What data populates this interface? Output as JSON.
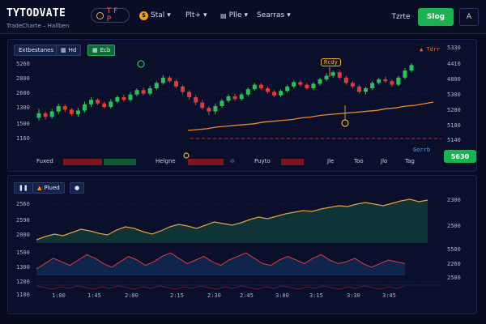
{
  "app": {
    "name": "TYTODVATE",
    "subtitle": "TradeCharte – Hallben"
  },
  "header": {
    "live_badge": "T F P",
    "nav": [
      {
        "label": "Stal"
      },
      {
        "label": "Plt+"
      },
      {
        "label": "Plle"
      },
      {
        "label": "Searras"
      }
    ],
    "text_link": "Tzrte",
    "primary_button": "Slog",
    "avatar": "A"
  },
  "main_chart": {
    "toolbar": [
      "Extbestanes",
      "Hd",
      "Ecb"
    ],
    "price_flag": "Tdrr",
    "y_labels": [
      "5260",
      "2800",
      "2600",
      "1300",
      "1500",
      "1160"
    ],
    "y_labels_right": [
      "5330",
      "5300",
      "4410",
      "4800",
      "5300",
      "5280",
      "5180",
      "5140"
    ],
    "right_badge": "Gorrb",
    "price_button": "5630",
    "callout": "Rcdy",
    "bottom_labels": [
      "Fuxed",
      "Helgne",
      "Puyto",
      "Jle",
      "Too",
      "Jlo",
      "Tag"
    ],
    "candle_data": [
      [
        37,
        42,
        34,
        47
      ],
      [
        42,
        38,
        35,
        44
      ],
      [
        38,
        44,
        36,
        47
      ],
      [
        44,
        50,
        41,
        53
      ],
      [
        50,
        46,
        43,
        52
      ],
      [
        46,
        41,
        39,
        48
      ],
      [
        41,
        45,
        38,
        48
      ],
      [
        45,
        52,
        43,
        55
      ],
      [
        52,
        57,
        49,
        60
      ],
      [
        57,
        53,
        51,
        59
      ],
      [
        53,
        49,
        47,
        55
      ],
      [
        49,
        55,
        47,
        58
      ],
      [
        55,
        60,
        53,
        62
      ],
      [
        60,
        57,
        55,
        63
      ],
      [
        57,
        63,
        55,
        66
      ],
      [
        63,
        68,
        61,
        70
      ],
      [
        68,
        64,
        62,
        71
      ],
      [
        64,
        70,
        62,
        73
      ],
      [
        70,
        76,
        68,
        78
      ],
      [
        76,
        82,
        74,
        85
      ],
      [
        82,
        78,
        76,
        84
      ],
      [
        78,
        72,
        70,
        80
      ],
      [
        72,
        66,
        63,
        74
      ],
      [
        66,
        60,
        57,
        68
      ],
      [
        60,
        54,
        51,
        62
      ],
      [
        54,
        48,
        46,
        57
      ],
      [
        48,
        44,
        40,
        50
      ],
      [
        44,
        50,
        41,
        53
      ],
      [
        50,
        56,
        48,
        58
      ],
      [
        56,
        61,
        54,
        63
      ],
      [
        61,
        58,
        56,
        64
      ],
      [
        58,
        63,
        56,
        65
      ],
      [
        63,
        69,
        61,
        71
      ],
      [
        69,
        74,
        67,
        76
      ],
      [
        74,
        70,
        68,
        76
      ],
      [
        70,
        66,
        64,
        72
      ],
      [
        66,
        62,
        60,
        68
      ],
      [
        62,
        67,
        60,
        69
      ],
      [
        67,
        72,
        65,
        74
      ],
      [
        72,
        77,
        70,
        79
      ],
      [
        77,
        74,
        72,
        79
      ],
      [
        74,
        70,
        68,
        76
      ],
      [
        70,
        75,
        68,
        77
      ],
      [
        75,
        80,
        73,
        82
      ],
      [
        80,
        84,
        78,
        87
      ],
      [
        84,
        88,
        82,
        90
      ],
      [
        88,
        82,
        80,
        90
      ],
      [
        82,
        76,
        74,
        84
      ],
      [
        76,
        72,
        70,
        78
      ],
      [
        72,
        66,
        64,
        74
      ],
      [
        66,
        70,
        63,
        72
      ],
      [
        70,
        76,
        68,
        78
      ],
      [
        76,
        80,
        74,
        82
      ],
      [
        80,
        78,
        76,
        83
      ],
      [
        78,
        74,
        72,
        80
      ],
      [
        74,
        82,
        72,
        84
      ],
      [
        82,
        90,
        80,
        93
      ],
      [
        90,
        96,
        88,
        98
      ]
    ],
    "ma_data": [
      40,
      41,
      42,
      44,
      45,
      46,
      47,
      48,
      50,
      51,
      52,
      53,
      55,
      56,
      58,
      59,
      60,
      61,
      62,
      63,
      64,
      66,
      67,
      69,
      70,
      72,
      74
    ]
  },
  "sub_chart": {
    "toolbar": [
      "Plued"
    ],
    "y_labels": [
      "2560",
      "2590",
      "2000",
      "1500",
      "1300",
      "1200",
      "1100"
    ],
    "y_labels_right": [
      "2300",
      "2500",
      "5500",
      "2260",
      "2580",
      "2300"
    ],
    "x_labels": [
      "1:00",
      "1:45",
      "2:00",
      "2:15",
      "2:30",
      "2:45",
      "3:00",
      "3:15",
      "3:30",
      "3:45"
    ],
    "area_data": [
      44,
      48,
      51,
      49,
      53,
      57,
      55,
      52,
      50,
      56,
      60,
      58,
      54,
      51,
      55,
      60,
      63,
      61,
      58,
      62,
      66,
      64,
      62,
      65,
      69,
      72,
      70,
      73,
      76,
      78,
      80,
      79,
      82,
      84,
      86,
      85,
      88,
      90,
      88,
      86,
      89,
      92,
      94,
      91,
      93
    ],
    "osc_data": [
      0,
      3,
      6,
      4,
      2,
      5,
      8,
      6,
      3,
      1,
      4,
      7,
      5,
      2,
      4,
      7,
      9,
      6,
      3,
      5,
      7,
      4,
      2,
      5,
      7,
      9,
      6,
      3,
      2,
      5,
      7,
      5,
      3,
      6,
      8,
      5,
      3,
      4,
      6,
      3,
      1,
      3,
      5,
      4,
      3
    ]
  },
  "colors": {
    "bull": "#2fbf5a",
    "bear": "#e23a3a",
    "ma": "#f08a24",
    "accent": "#19b34f",
    "grid": "#1d2a52",
    "line": "#e2a040"
  }
}
